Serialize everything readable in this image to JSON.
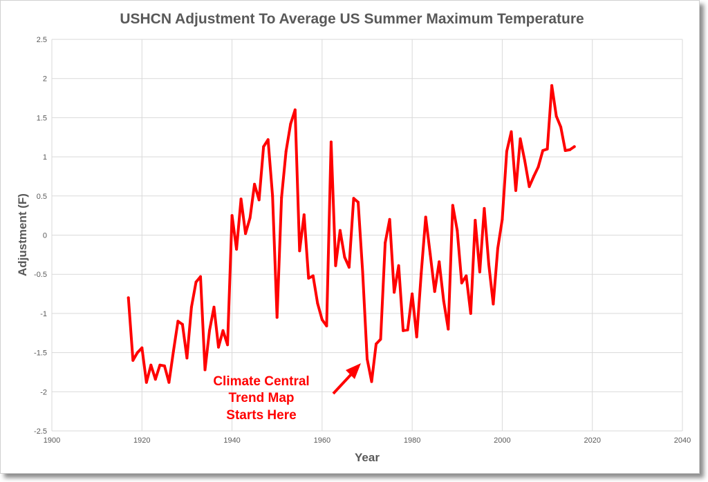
{
  "chart_data": {
    "type": "line",
    "title": "USHCN Adjustment To Average US Summer Maximum Temperature",
    "xlabel": "Year",
    "ylabel": "Adjustment (F)",
    "xlim": [
      1900,
      2040
    ],
    "ylim": [
      -2.5,
      2.5
    ],
    "xticks": [
      1900,
      1920,
      1940,
      1960,
      1980,
      2000,
      2020,
      2040
    ],
    "yticks": [
      2.5,
      2,
      1.5,
      1,
      0.5,
      0,
      -0.5,
      -1,
      -1.5,
      -2,
      -2.5
    ],
    "grid": true,
    "series_color": "#ff0000",
    "series": [
      {
        "x": [
          1917,
          1918,
          1919,
          1920,
          1921,
          1922,
          1923,
          1924,
          1925,
          1926,
          1927,
          1928,
          1929,
          1930,
          1931,
          1932,
          1933,
          1934,
          1935,
          1936,
          1937,
          1938,
          1939,
          1940,
          1941,
          1942,
          1943,
          1944,
          1945,
          1946,
          1947,
          1948,
          1949,
          1950,
          1951,
          1952,
          1953,
          1954,
          1955,
          1956,
          1957,
          1958,
          1959,
          1960,
          1961,
          1962,
          1963,
          1964,
          1965,
          1966,
          1967,
          1968,
          1969,
          1970,
          1971,
          1972,
          1973,
          1974,
          1975,
          1976,
          1977,
          1978,
          1979,
          1980,
          1981,
          1982,
          1983,
          1984,
          1985,
          1986,
          1987,
          1988,
          1989,
          1990,
          1991,
          1992,
          1993,
          1994,
          1995,
          1996,
          1997,
          1998,
          1999,
          2000,
          2001,
          2002,
          2003,
          2004,
          2005,
          2006,
          2007,
          2008,
          2009,
          2010,
          2011,
          2012,
          2013,
          2014,
          2015,
          2016
        ],
        "values": [
          -0.8,
          -1.6,
          -1.5,
          -1.44,
          -1.88,
          -1.66,
          -1.84,
          -1.66,
          -1.67,
          -1.88,
          -1.48,
          -1.1,
          -1.14,
          -1.57,
          -0.92,
          -0.6,
          -0.53,
          -1.72,
          -1.22,
          -0.92,
          -1.43,
          -1.22,
          -1.4,
          0.25,
          -0.18,
          0.46,
          0.02,
          0.22,
          0.65,
          0.45,
          1.13,
          1.22,
          0.5,
          -1.05,
          0.48,
          1.07,
          1.42,
          1.6,
          -0.2,
          0.26,
          -0.55,
          -0.52,
          -0.87,
          -1.08,
          -1.16,
          1.19,
          -0.39,
          0.06,
          -0.28,
          -0.41,
          0.47,
          0.42,
          -0.47,
          -1.58,
          -1.87,
          -1.39,
          -1.33,
          -0.1,
          0.2,
          -0.73,
          -0.39,
          -1.22,
          -1.21,
          -0.75,
          -1.3,
          -0.49,
          0.23,
          -0.24,
          -0.72,
          -0.34,
          -0.84,
          -1.2,
          0.38,
          0.06,
          -0.61,
          -0.52,
          -1.0,
          0.19,
          -0.47,
          0.34,
          -0.37,
          -0.88,
          -0.17,
          0.2,
          1.07,
          1.32,
          0.57,
          1.23,
          0.95,
          0.62,
          0.75,
          0.87,
          1.08,
          1.1,
          1.91,
          1.52,
          1.38,
          1.08,
          1.09,
          1.13
        ]
      }
    ]
  },
  "annotation": {
    "lines": [
      "Climate Central",
      "Trend Map",
      "Starts Here"
    ]
  }
}
